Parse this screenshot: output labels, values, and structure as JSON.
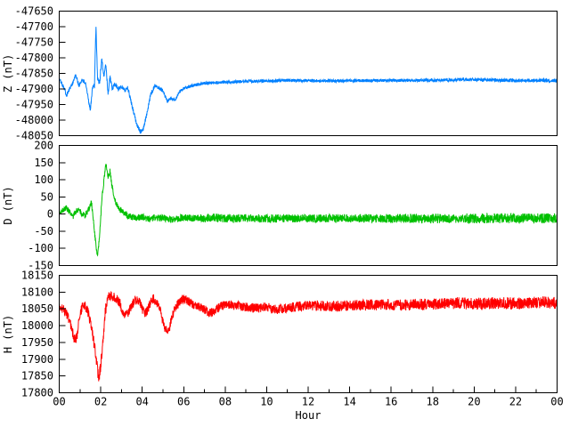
{
  "chart_data": {
    "type": "line",
    "title": "",
    "xlabel": "Hour",
    "x_range": [
      0,
      24
    ],
    "x_major_ticks": {
      "values": [
        0,
        2,
        4,
        6,
        8,
        10,
        12,
        14,
        16,
        18,
        20,
        22,
        24
      ],
      "labels": [
        "00",
        "02",
        "04",
        "06",
        "08",
        "10",
        "12",
        "14",
        "16",
        "18",
        "20",
        "22",
        "00"
      ]
    },
    "x_minor_values": [
      1,
      3,
      5,
      7,
      9,
      11,
      13,
      15,
      17,
      19,
      21,
      23
    ],
    "grid": false,
    "legend": "none",
    "background_color": "#ffffff",
    "axis_color": "#000000",
    "panels": [
      {
        "id": "Z",
        "ylabel": "Z (nT)",
        "color": "#0080ff",
        "ylim": [
          -48050,
          -47650
        ],
        "ytick_values": [
          -47650,
          -47700,
          -47750,
          -47800,
          -47850,
          -47900,
          -47950,
          -48000,
          -48050
        ],
        "ytick_labels": [
          "-47650",
          "-47700",
          "-47750",
          "-47800",
          "-47850",
          "-47900",
          "-47950",
          "-48000",
          "-48050"
        ],
        "keypoints": [
          [
            0,
            -47868
          ],
          [
            0.2,
            -47890
          ],
          [
            0.35,
            -47920
          ],
          [
            0.5,
            -47900
          ],
          [
            0.65,
            -47880
          ],
          [
            0.8,
            -47855
          ],
          [
            0.95,
            -47890
          ],
          [
            1.1,
            -47870
          ],
          [
            1.25,
            -47880
          ],
          [
            1.4,
            -47930
          ],
          [
            1.5,
            -47968
          ],
          [
            1.6,
            -47895
          ],
          [
            1.7,
            -47890
          ],
          [
            1.77,
            -47697
          ],
          [
            1.85,
            -47870
          ],
          [
            1.95,
            -47880
          ],
          [
            2.05,
            -47800
          ],
          [
            2.15,
            -47860
          ],
          [
            2.25,
            -47820
          ],
          [
            2.35,
            -47915
          ],
          [
            2.45,
            -47860
          ],
          [
            2.55,
            -47900
          ],
          [
            2.7,
            -47885
          ],
          [
            2.85,
            -47900
          ],
          [
            3.0,
            -47890
          ],
          [
            3.15,
            -47905
          ],
          [
            3.3,
            -47895
          ],
          [
            3.5,
            -47950
          ],
          [
            3.7,
            -48005
          ],
          [
            3.9,
            -48038
          ],
          [
            4.05,
            -48030
          ],
          [
            4.2,
            -47985
          ],
          [
            4.4,
            -47920
          ],
          [
            4.6,
            -47890
          ],
          [
            4.8,
            -47895
          ],
          [
            5.0,
            -47905
          ],
          [
            5.2,
            -47940
          ],
          [
            5.4,
            -47930
          ],
          [
            5.6,
            -47935
          ],
          [
            5.8,
            -47910
          ],
          [
            6.0,
            -47898
          ],
          [
            6.5,
            -47888
          ],
          [
            7.0,
            -47882
          ],
          [
            7.5,
            -47880
          ],
          [
            8,
            -47878
          ],
          [
            9,
            -47876
          ],
          [
            10,
            -47874
          ],
          [
            11,
            -47873
          ],
          [
            12,
            -47873
          ],
          [
            13,
            -47874
          ],
          [
            14,
            -47874
          ],
          [
            15,
            -47873
          ],
          [
            16,
            -47873
          ],
          [
            17,
            -47872
          ],
          [
            18,
            -47872
          ],
          [
            19,
            -47871
          ],
          [
            20,
            -47870
          ],
          [
            21,
            -47872
          ],
          [
            22,
            -47873
          ],
          [
            23,
            -47872
          ],
          [
            24,
            -47873
          ]
        ],
        "noise": {
          "seed": 101,
          "amplitude_keypoints": [
            [
              0,
              6
            ],
            [
              1.5,
              7
            ],
            [
              2,
              9
            ],
            [
              3,
              7
            ],
            [
              4,
              7
            ],
            [
              6,
              5
            ],
            [
              10,
              5
            ],
            [
              16,
              5
            ],
            [
              20,
              5
            ],
            [
              24,
              6
            ]
          ]
        }
      },
      {
        "id": "D",
        "ylabel": "D (nT)",
        "color": "#00c000",
        "ylim": [
          -150,
          200
        ],
        "ytick_values": [
          200,
          150,
          100,
          50,
          0,
          -50,
          -100,
          -150
        ],
        "ytick_labels": [
          "200",
          "150",
          "100",
          "50",
          "0",
          "-50",
          "-100",
          "-150"
        ],
        "keypoints": [
          [
            0,
            5
          ],
          [
            0.2,
            12
          ],
          [
            0.35,
            18
          ],
          [
            0.5,
            5
          ],
          [
            0.65,
            -10
          ],
          [
            0.8,
            8
          ],
          [
            0.95,
            15
          ],
          [
            1.1,
            0
          ],
          [
            1.25,
            -5
          ],
          [
            1.4,
            10
          ],
          [
            1.55,
            35
          ],
          [
            1.65,
            -20
          ],
          [
            1.75,
            -80
          ],
          [
            1.85,
            -128
          ],
          [
            1.95,
            -60
          ],
          [
            2.05,
            40
          ],
          [
            2.15,
            95
          ],
          [
            2.25,
            148
          ],
          [
            2.35,
            110
          ],
          [
            2.45,
            125
          ],
          [
            2.55,
            80
          ],
          [
            2.65,
            45
          ],
          [
            2.8,
            25
          ],
          [
            2.95,
            12
          ],
          [
            3.1,
            5
          ],
          [
            3.3,
            -5
          ],
          [
            3.5,
            -8
          ],
          [
            3.7,
            -12
          ],
          [
            4.0,
            -8
          ],
          [
            4.3,
            -15
          ],
          [
            4.6,
            -10
          ],
          [
            5.0,
            -12
          ],
          [
            5.5,
            -15
          ],
          [
            6,
            -10
          ],
          [
            6.5,
            -12
          ],
          [
            7,
            -14
          ],
          [
            7.5,
            -10
          ],
          [
            8,
            -13
          ],
          [
            9,
            -12
          ],
          [
            10,
            -13
          ],
          [
            11,
            -12
          ],
          [
            12,
            -13
          ],
          [
            13,
            -12
          ],
          [
            14,
            -13
          ],
          [
            15,
            -12
          ],
          [
            16,
            -13
          ],
          [
            17,
            -12
          ],
          [
            18,
            -13
          ],
          [
            19,
            -12
          ],
          [
            20,
            -13
          ],
          [
            21,
            -12
          ],
          [
            22,
            -13
          ],
          [
            23,
            -12
          ],
          [
            24,
            -12
          ]
        ],
        "noise": {
          "seed": 202,
          "amplitude_keypoints": [
            [
              0,
              8
            ],
            [
              1,
              9
            ],
            [
              2,
              8
            ],
            [
              3,
              9
            ],
            [
              5,
              10
            ],
            [
              8,
              12
            ],
            [
              12,
              12
            ],
            [
              16,
              13
            ],
            [
              20,
              15
            ],
            [
              24,
              14
            ]
          ]
        }
      },
      {
        "id": "H",
        "ylabel": "H (nT)",
        "color": "#ff0000",
        "ylim": [
          17800,
          18150
        ],
        "ytick_values": [
          18150,
          18100,
          18050,
          18000,
          17950,
          17900,
          17850,
          17800
        ],
        "ytick_labels": [
          "18150",
          "18100",
          "18050",
          "18000",
          "17950",
          "17900",
          "17850",
          "17800"
        ],
        "keypoints": [
          [
            0,
            18055
          ],
          [
            0.2,
            18050
          ],
          [
            0.4,
            18030
          ],
          [
            0.6,
            17990
          ],
          [
            0.75,
            17955
          ],
          [
            0.85,
            17965
          ],
          [
            0.95,
            18020
          ],
          [
            1.1,
            18055
          ],
          [
            1.25,
            18060
          ],
          [
            1.4,
            18040
          ],
          [
            1.55,
            17990
          ],
          [
            1.7,
            17940
          ],
          [
            1.8,
            17890
          ],
          [
            1.9,
            17843
          ],
          [
            2.0,
            17880
          ],
          [
            2.1,
            17950
          ],
          [
            2.2,
            18030
          ],
          [
            2.3,
            18075
          ],
          [
            2.45,
            18090
          ],
          [
            2.6,
            18085
          ],
          [
            2.75,
            18080
          ],
          [
            2.9,
            18070
          ],
          [
            3.05,
            18045
          ],
          [
            3.2,
            18030
          ],
          [
            3.35,
            18040
          ],
          [
            3.5,
            18060
          ],
          [
            3.65,
            18075
          ],
          [
            3.8,
            18075
          ],
          [
            3.95,
            18060
          ],
          [
            4.1,
            18035
          ],
          [
            4.25,
            18045
          ],
          [
            4.4,
            18070
          ],
          [
            4.55,
            18080
          ],
          [
            4.7,
            18070
          ],
          [
            4.85,
            18050
          ],
          [
            5.0,
            18010
          ],
          [
            5.15,
            17985
          ],
          [
            5.3,
            17990
          ],
          [
            5.45,
            18030
          ],
          [
            5.6,
            18055
          ],
          [
            5.8,
            18070
          ],
          [
            6.0,
            18080
          ],
          [
            6.2,
            18075
          ],
          [
            6.4,
            18065
          ],
          [
            6.6,
            18060
          ],
          [
            6.8,
            18055
          ],
          [
            7.0,
            18050
          ],
          [
            7.2,
            18038
          ],
          [
            7.4,
            18040
          ],
          [
            7.6,
            18050
          ],
          [
            7.8,
            18058
          ],
          [
            8.0,
            18062
          ],
          [
            8.5,
            18060
          ],
          [
            9,
            18055
          ],
          [
            9.5,
            18052
          ],
          [
            10,
            18055
          ],
          [
            10.5,
            18048
          ],
          [
            11,
            18052
          ],
          [
            11.5,
            18058
          ],
          [
            12,
            18060
          ],
          [
            13,
            18058
          ],
          [
            14,
            18060
          ],
          [
            15,
            18062
          ],
          [
            16,
            18063
          ],
          [
            17,
            18062
          ],
          [
            18,
            18065
          ],
          [
            19,
            18067
          ],
          [
            20,
            18065
          ],
          [
            21,
            18068
          ],
          [
            22,
            18066
          ],
          [
            23,
            18070
          ],
          [
            24,
            18068
          ]
        ],
        "noise": {
          "seed": 303,
          "amplitude_keypoints": [
            [
              0,
              13
            ],
            [
              1,
              15
            ],
            [
              2,
              18
            ],
            [
              3,
              14
            ],
            [
              5,
              14
            ],
            [
              7,
              13
            ],
            [
              9,
              14
            ],
            [
              12,
              15
            ],
            [
              16,
              17
            ],
            [
              20,
              18
            ],
            [
              24,
              18
            ]
          ]
        }
      }
    ]
  }
}
